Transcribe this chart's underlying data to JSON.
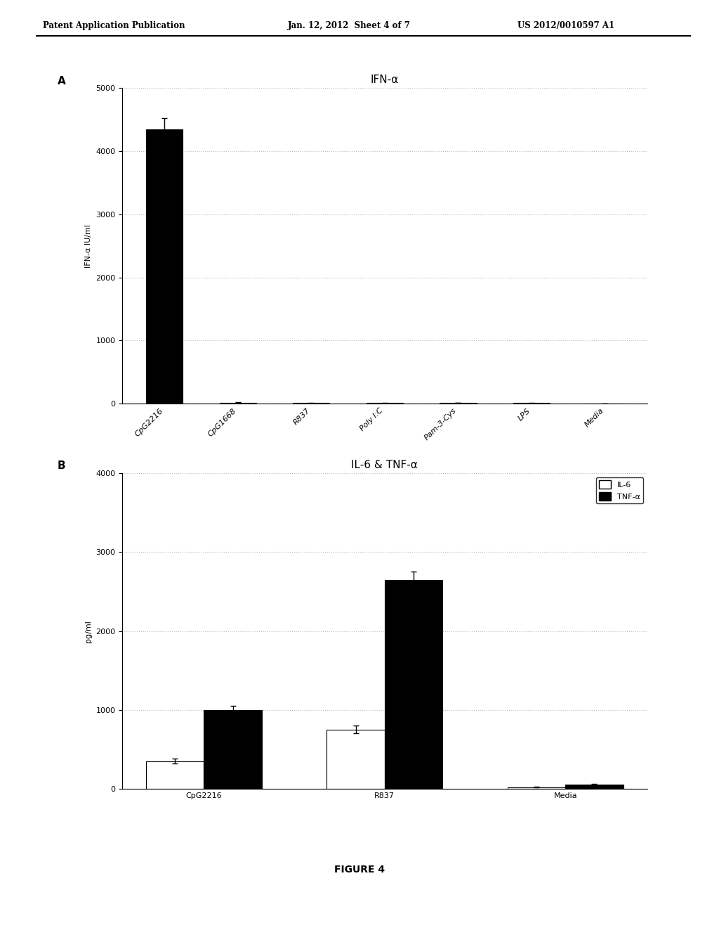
{
  "header_left": "Patent Application Publication",
  "header_mid": "Jan. 12, 2012  Sheet 4 of 7",
  "header_right": "US 2012/0010597 A1",
  "panel_a_label": "A",
  "panel_a_title": "IFN-α",
  "panel_a_ylabel": "IFN-α IU/ml",
  "panel_a_categories": [
    "CpG2216",
    "CpG1668",
    "R837",
    "Poly I:C",
    "Pam-3-Cys",
    "LPS",
    "Media"
  ],
  "panel_a_values": [
    4350,
    15,
    10,
    8,
    12,
    10,
    5
  ],
  "panel_a_errors": [
    170,
    5,
    3,
    2,
    4,
    3,
    2
  ],
  "panel_a_ylim": [
    0,
    5000
  ],
  "panel_a_yticks": [
    0,
    1000,
    2000,
    3000,
    4000,
    5000
  ],
  "panel_b_label": "B",
  "panel_b_title": "IL-6 & TNF-α",
  "panel_b_ylabel": "pg/ml",
  "panel_b_categories": [
    "CpG2216",
    "R837",
    "Media"
  ],
  "panel_b_il6_values": [
    350,
    750,
    20
  ],
  "panel_b_tnfa_values": [
    1000,
    2650,
    50
  ],
  "panel_b_il6_errors": [
    30,
    50,
    5
  ],
  "panel_b_tnfa_errors": [
    50,
    100,
    8
  ],
  "panel_b_ylim": [
    0,
    4000
  ],
  "panel_b_yticks": [
    0,
    1000,
    2000,
    3000,
    4000
  ],
  "panel_b_legend_il6": "IL-6",
  "panel_b_legend_tnfa": "TNF-α",
  "figure_caption": "FIGURE 4",
  "bar_color_black": "#000000",
  "bar_color_white": "#ffffff",
  "bar_edge_color": "#000000",
  "grid_color": "#bbbbbb",
  "background_color": "#ffffff",
  "font_color": "#000000"
}
